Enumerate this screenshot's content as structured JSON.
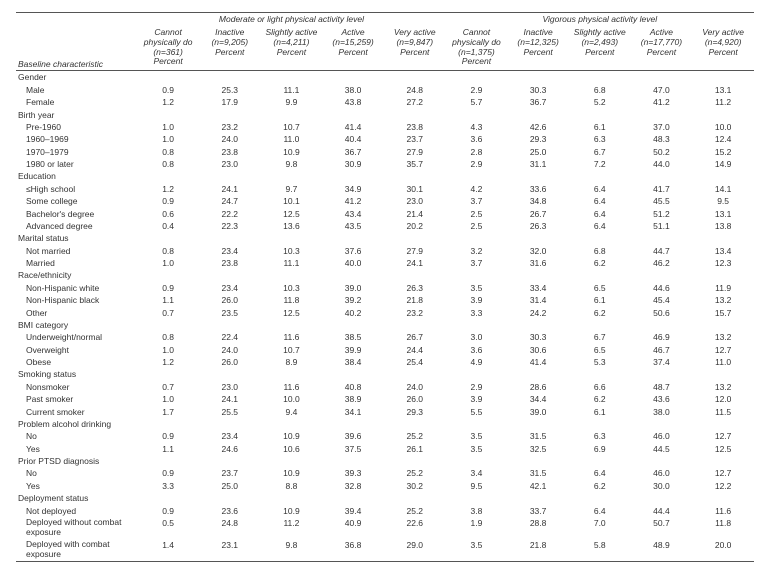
{
  "header": {
    "group_left": "Moderate or light physical activity level",
    "group_right": "Vigorous physical activity level",
    "baseline_label": "Baseline characteristic",
    "cols": [
      {
        "title": "Cannot physically do",
        "n": "(n=361)",
        "p": "Percent"
      },
      {
        "title": "Inactive",
        "n": "(n=9,205)",
        "p": "Percent"
      },
      {
        "title": "Slightly active",
        "n": "(n=4,211)",
        "p": "Percent"
      },
      {
        "title": "Active",
        "n": "(n=15,259)",
        "p": "Percent"
      },
      {
        "title": "Very active",
        "n": "(n=9,847)",
        "p": "Percent"
      },
      {
        "title": "Cannot physically do",
        "n": "(n=1,375)",
        "p": "Percent"
      },
      {
        "title": "Inactive",
        "n": "(n=12,325)",
        "p": "Percent"
      },
      {
        "title": "Slightly active",
        "n": "(n=2,493)",
        "p": "Percent"
      },
      {
        "title": "Active",
        "n": "(n=17,770)",
        "p": "Percent"
      },
      {
        "title": "Very active",
        "n": "(n=4,920)",
        "p": "Percent"
      }
    ]
  },
  "rows": [
    {
      "label": "Gender",
      "section": true
    },
    {
      "label": "Male",
      "indent": 1,
      "v": [
        "0.9",
        "25.3",
        "11.1",
        "38.0",
        "24.8",
        "2.9",
        "30.3",
        "6.8",
        "47.0",
        "13.1"
      ]
    },
    {
      "label": "Female",
      "indent": 1,
      "v": [
        "1.2",
        "17.9",
        "9.9",
        "43.8",
        "27.2",
        "5.7",
        "36.7",
        "5.2",
        "41.2",
        "11.2"
      ]
    },
    {
      "label": "Birth year",
      "section": true
    },
    {
      "label": "Pre-1960",
      "indent": 1,
      "v": [
        "1.0",
        "23.2",
        "10.7",
        "41.4",
        "23.8",
        "4.3",
        "42.6",
        "6.1",
        "37.0",
        "10.0"
      ]
    },
    {
      "label": "1960–1969",
      "indent": 1,
      "v": [
        "1.0",
        "24.0",
        "11.0",
        "40.4",
        "23.7",
        "3.6",
        "29.3",
        "6.3",
        "48.3",
        "12.4"
      ]
    },
    {
      "label": "1970–1979",
      "indent": 1,
      "v": [
        "0.8",
        "23.8",
        "10.9",
        "36.7",
        "27.9",
        "2.8",
        "25.0",
        "6.7",
        "50.2",
        "15.2"
      ]
    },
    {
      "label": "1980 or later",
      "indent": 1,
      "v": [
        "0.8",
        "23.0",
        "9.8",
        "30.9",
        "35.7",
        "2.9",
        "31.1",
        "7.2",
        "44.0",
        "14.9"
      ]
    },
    {
      "label": "Education",
      "section": true
    },
    {
      "label": "≤High school",
      "indent": 1,
      "v": [
        "1.2",
        "24.1",
        "9.7",
        "34.9",
        "30.1",
        "4.2",
        "33.6",
        "6.4",
        "41.7",
        "14.1"
      ]
    },
    {
      "label": "Some college",
      "indent": 1,
      "v": [
        "0.9",
        "24.7",
        "10.1",
        "41.2",
        "23.0",
        "3.7",
        "34.8",
        "6.4",
        "45.5",
        "9.5"
      ]
    },
    {
      "label": "Bachelor's degree",
      "indent": 1,
      "v": [
        "0.6",
        "22.2",
        "12.5",
        "43.4",
        "21.4",
        "2.5",
        "26.7",
        "6.4",
        "51.2",
        "13.1"
      ]
    },
    {
      "label": "Advanced degree",
      "indent": 1,
      "v": [
        "0.4",
        "22.3",
        "13.6",
        "43.5",
        "20.2",
        "2.5",
        "26.3",
        "6.4",
        "51.1",
        "13.8"
      ]
    },
    {
      "label": "Marital status",
      "section": true
    },
    {
      "label": "Not married",
      "indent": 1,
      "v": [
        "0.8",
        "23.4",
        "10.3",
        "37.6",
        "27.9",
        "3.2",
        "32.0",
        "6.8",
        "44.7",
        "13.4"
      ]
    },
    {
      "label": "Married",
      "indent": 1,
      "v": [
        "1.0",
        "23.8",
        "11.1",
        "40.0",
        "24.1",
        "3.7",
        "31.6",
        "6.2",
        "46.2",
        "12.3"
      ]
    },
    {
      "label": "Race/ethnicity",
      "section": true
    },
    {
      "label": "Non-Hispanic white",
      "indent": 1,
      "v": [
        "0.9",
        "23.4",
        "10.3",
        "39.0",
        "26.3",
        "3.5",
        "33.4",
        "6.5",
        "44.6",
        "11.9"
      ]
    },
    {
      "label": "Non-Hispanic black",
      "indent": 1,
      "v": [
        "1.1",
        "26.0",
        "11.8",
        "39.2",
        "21.8",
        "3.9",
        "31.4",
        "6.1",
        "45.4",
        "13.2"
      ]
    },
    {
      "label": "Other",
      "indent": 1,
      "v": [
        "0.7",
        "23.5",
        "12.5",
        "40.2",
        "23.2",
        "3.3",
        "24.2",
        "6.2",
        "50.6",
        "15.7"
      ]
    },
    {
      "label": "BMI category",
      "section": true
    },
    {
      "label": "Underweight/normal",
      "indent": 1,
      "v": [
        "0.8",
        "22.4",
        "11.6",
        "38.5",
        "26.7",
        "3.0",
        "30.3",
        "6.7",
        "46.9",
        "13.2"
      ]
    },
    {
      "label": "Overweight",
      "indent": 1,
      "v": [
        "1.0",
        "24.0",
        "10.7",
        "39.9",
        "24.4",
        "3.6",
        "30.6",
        "6.5",
        "46.7",
        "12.7"
      ]
    },
    {
      "label": "Obese",
      "indent": 1,
      "v": [
        "1.2",
        "26.0",
        "8.9",
        "38.4",
        "25.4",
        "4.9",
        "41.4",
        "5.3",
        "37.4",
        "11.0"
      ]
    },
    {
      "label": "Smoking status",
      "section": true
    },
    {
      "label": "Nonsmoker",
      "indent": 1,
      "v": [
        "0.7",
        "23.0",
        "11.6",
        "40.8",
        "24.0",
        "2.9",
        "28.6",
        "6.6",
        "48.7",
        "13.2"
      ]
    },
    {
      "label": "Past smoker",
      "indent": 1,
      "v": [
        "1.0",
        "24.1",
        "10.0",
        "38.9",
        "26.0",
        "3.9",
        "34.4",
        "6.2",
        "43.6",
        "12.0"
      ]
    },
    {
      "label": "Current smoker",
      "indent": 1,
      "v": [
        "1.7",
        "25.5",
        "9.4",
        "34.1",
        "29.3",
        "5.5",
        "39.0",
        "6.1",
        "38.0",
        "11.5"
      ]
    },
    {
      "label": "Problem alcohol drinking",
      "section": true
    },
    {
      "label": "No",
      "indent": 1,
      "v": [
        "0.9",
        "23.4",
        "10.9",
        "39.6",
        "25.2",
        "3.5",
        "31.5",
        "6.3",
        "46.0",
        "12.7"
      ]
    },
    {
      "label": "Yes",
      "indent": 1,
      "v": [
        "1.1",
        "24.6",
        "10.6",
        "37.5",
        "26.1",
        "3.5",
        "32.5",
        "6.9",
        "44.5",
        "12.5"
      ]
    },
    {
      "label": "Prior PTSD diagnosis",
      "section": true
    },
    {
      "label": "No",
      "indent": 1,
      "v": [
        "0.9",
        "23.7",
        "10.9",
        "39.3",
        "25.2",
        "3.4",
        "31.5",
        "6.4",
        "46.0",
        "12.7"
      ]
    },
    {
      "label": "Yes",
      "indent": 1,
      "v": [
        "3.3",
        "25.0",
        "8.8",
        "32.8",
        "30.2",
        "9.5",
        "42.1",
        "6.2",
        "30.0",
        "12.2"
      ]
    },
    {
      "label": "Deployment status",
      "section": true
    },
    {
      "label": "Not deployed",
      "indent": 1,
      "v": [
        "0.9",
        "23.6",
        "10.9",
        "39.4",
        "25.2",
        "3.8",
        "33.7",
        "6.4",
        "44.4",
        "11.6"
      ]
    },
    {
      "label": "Deployed without combat exposure",
      "indent": 1,
      "wrap": true,
      "v": [
        "0.5",
        "24.8",
        "11.2",
        "40.9",
        "22.6",
        "1.9",
        "28.8",
        "7.0",
        "50.7",
        "11.8"
      ]
    },
    {
      "label": "Deployed with combat exposure",
      "indent": 1,
      "wrap": true,
      "v": [
        "1.4",
        "23.1",
        "9.8",
        "36.8",
        "29.0",
        "3.5",
        "21.8",
        "5.8",
        "48.9",
        "20.0"
      ]
    }
  ]
}
